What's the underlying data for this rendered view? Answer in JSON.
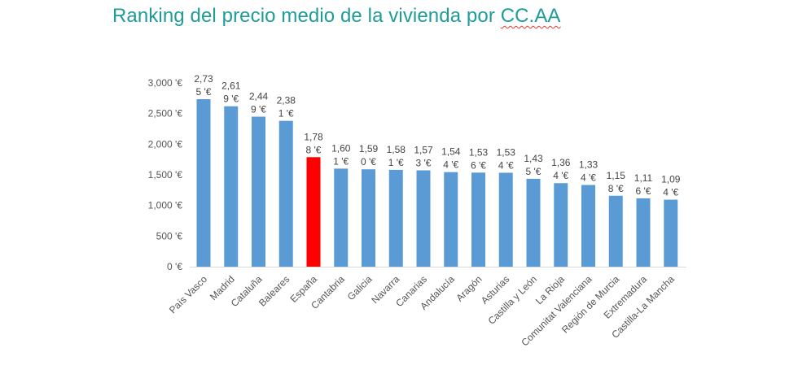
{
  "title": {
    "main": "Ranking del precio medio de la vivienda por ",
    "tail": "CC.AA"
  },
  "colors": {
    "title": "#1f9c9a",
    "bar": "#5b9bd5",
    "highlight": "#ff0000",
    "axis": "#d9d9d9",
    "text": "#555555"
  },
  "chart_data": {
    "type": "bar",
    "title": "Ranking del precio medio de la vivienda por CC.AA",
    "xlabel": "",
    "ylabel": "",
    "ylim": [
      0,
      3000
    ],
    "yticks": [
      0,
      500,
      1000,
      1500,
      2000,
      2500,
      3000
    ],
    "ytick_labels": [
      "0 '€",
      "500 '€",
      "1,000 '€",
      "1,500 '€",
      "2,000 '€",
      "2,500 '€",
      "3,000 '€"
    ],
    "grid": false,
    "legend": "none",
    "categories": [
      "País Vasco",
      "Madrid",
      "Cataluña",
      "Baleares",
      "España",
      "Cantabria",
      "Galicia",
      "Navarra",
      "Canarias",
      "Andalucía",
      "Aragón",
      "Asturias",
      "Castilla y León",
      "La Rioja",
      "Comunitat Valenciana",
      "Región de Murcia",
      "Extremadura",
      "Castilla-La Mancha"
    ],
    "values": [
      2735,
      2619,
      2449,
      2381,
      1788,
      1601,
      1590,
      1581,
      1573,
      1544,
      1536,
      1534,
      1435,
      1364,
      1334,
      1158,
      1116,
      1094
    ],
    "data_labels": [
      [
        "2,73",
        "5 '€"
      ],
      [
        "2,61",
        "9 '€"
      ],
      [
        "2,44",
        "9 '€"
      ],
      [
        "2,38",
        "1 '€"
      ],
      [
        "1,78",
        "8 '€"
      ],
      [
        "1,60",
        "1 '€"
      ],
      [
        "1,59",
        "0 '€"
      ],
      [
        "1,58",
        "1 '€"
      ],
      [
        "1,57",
        "3 '€"
      ],
      [
        "1,54",
        "4 '€"
      ],
      [
        "1,53",
        "6 '€"
      ],
      [
        "1,53",
        "4 '€"
      ],
      [
        "1,43",
        "5 '€"
      ],
      [
        "1,36",
        "4 '€"
      ],
      [
        "1,33",
        "4 '€"
      ],
      [
        "1,15",
        "8 '€"
      ],
      [
        "1,11",
        "6 '€"
      ],
      [
        "1,09",
        "4 '€"
      ]
    ],
    "highlight_category": "España"
  }
}
